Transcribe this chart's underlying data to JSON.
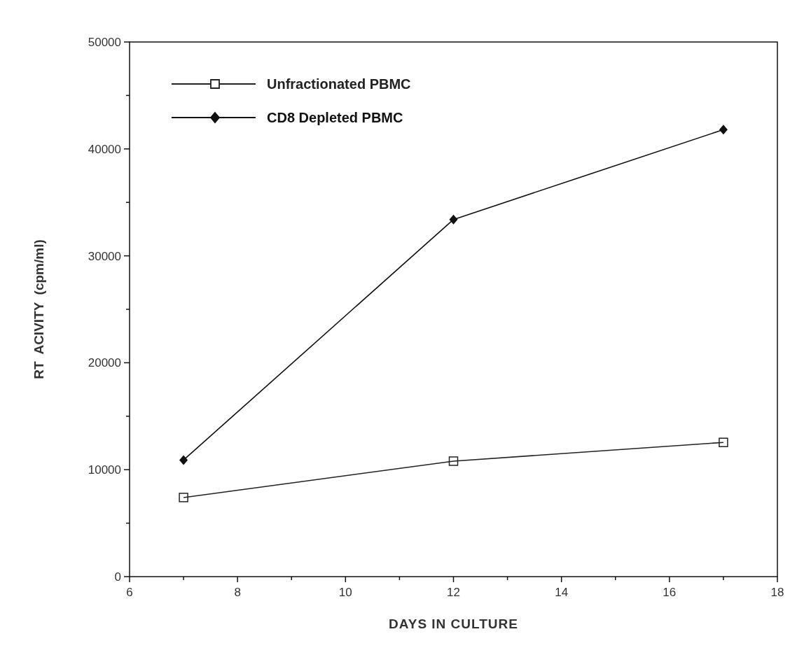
{
  "chart_data": {
    "type": "line",
    "xlabel": "DAYS IN CULTURE",
    "ylabel": "RT  ACIVITY  (cpm/ml)",
    "x": [
      7,
      12,
      17
    ],
    "series": [
      {
        "name": "Unfractionated PBMC",
        "color": "#222222",
        "marker": "square",
        "values": [
          7400,
          10800,
          12550
        ]
      },
      {
        "name": "CD8 Depleted PBMC",
        "color": "#111111",
        "marker": "diamond",
        "values": [
          10900,
          33400,
          41800
        ]
      }
    ],
    "xlim": [
      6,
      18
    ],
    "xticks": [
      6,
      {
        "value": 7,
        "label": null
      },
      8,
      {
        "value": 9,
        "label": null
      },
      10,
      {
        "value": 11,
        "label": null
      },
      12,
      {
        "value": 13,
        "label": null
      },
      14,
      {
        "value": 15,
        "label": null
      },
      16,
      {
        "value": 17,
        "label": null
      },
      18
    ],
    "ylim": [
      0,
      50000
    ],
    "yticks": [
      0,
      {
        "value": 5000,
        "label": null
      },
      10000,
      {
        "value": 15000,
        "label": null
      },
      20000,
      {
        "value": 25000,
        "label": null
      },
      30000,
      {
        "value": 35000,
        "label": null
      },
      40000,
      {
        "value": 45000,
        "label": null
      },
      50000
    ],
    "legend": "top left",
    "grid": false,
    "line_style": "solid"
  }
}
